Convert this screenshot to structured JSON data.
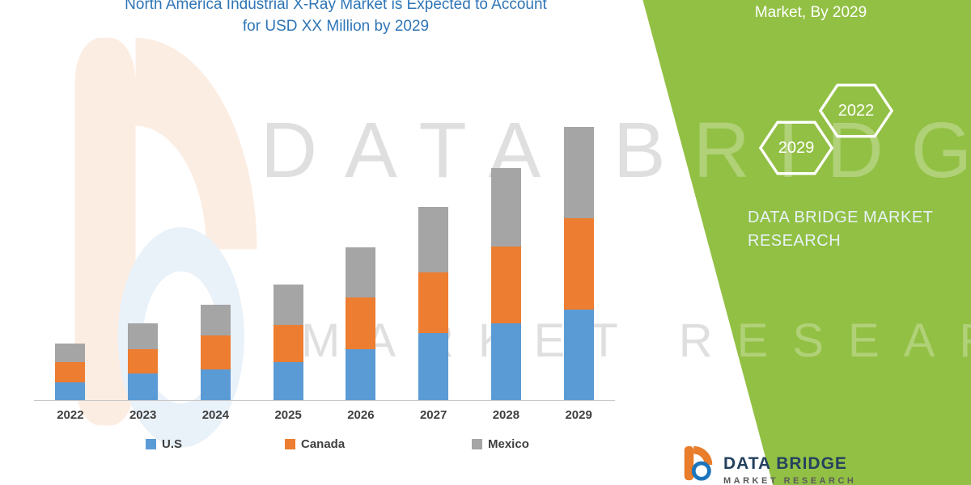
{
  "chart": {
    "title_line1": "North America Industrial X-Ray Market is Expected to Account",
    "title_line2": "for USD XX Million by 2029",
    "title_color": "#2E75B6"
  },
  "chart_data": {
    "type": "bar",
    "stacked": true,
    "title": "North America Industrial X-Ray Market is Expected to Account for USD XX Million by 2029",
    "categories": [
      "2022",
      "2023",
      "2024",
      "2025",
      "2026",
      "2027",
      "2028",
      "2029"
    ],
    "series": [
      {
        "name": "U.S",
        "color": "#5B9BD5",
        "values": [
          22,
          33,
          38,
          47,
          63,
          83,
          95,
          112
        ]
      },
      {
        "name": "Canada",
        "color": "#ED7D31",
        "values": [
          25,
          30,
          42,
          46,
          64,
          75,
          95,
          113
        ]
      },
      {
        "name": "Mexico",
        "color": "#A5A5A5",
        "values": [
          23,
          32,
          38,
          50,
          62,
          81,
          97,
          113
        ]
      }
    ],
    "stack_totals": [
      70,
      95,
      118,
      143,
      189,
      239,
      287,
      338
    ],
    "value_axis": "hidden — no numeric labels shown (USD XX Million placeholder); series values are relative estimates from bar heights",
    "xlabel": "",
    "ylabel": "",
    "gridlines": false,
    "legend_position": "bottom"
  },
  "watermark": {
    "line1": "DATA BRIDGE",
    "line2": "MARKET RESEARCH"
  },
  "side_panel": {
    "color": "#92C044",
    "heading": "Market, By 2029",
    "hexagons": [
      "2029",
      "2022"
    ],
    "brand_line1": "DATA BRIDGE MARKET",
    "brand_line2": "RESEARCH"
  },
  "footer_logo": {
    "line1": "DATA BRIDGE",
    "line2": "MARKET RESEARCH"
  }
}
